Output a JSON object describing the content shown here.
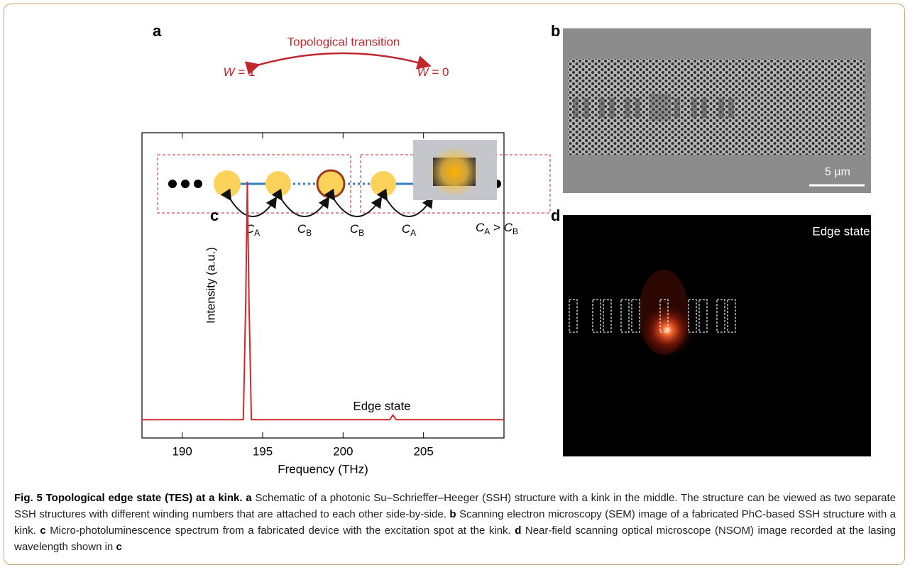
{
  "panel_a": {
    "label": "a",
    "title": "Topological transition",
    "left_winding": {
      "symbol": "W",
      "rest": " = 1"
    },
    "right_winding": {
      "symbol": "W",
      "rest": " = 0"
    },
    "couplings": [
      {
        "symbol": "C",
        "sub": "A"
      },
      {
        "symbol": "C",
        "sub": "B"
      },
      {
        "symbol": "C",
        "sub": "B"
      },
      {
        "symbol": "C",
        "sub": "A"
      }
    ],
    "condition": {
      "left": {
        "symbol": "C",
        "sub": "A"
      },
      "op": " > ",
      "right": {
        "symbol": "C",
        "sub": "B"
      }
    }
  },
  "panel_b": {
    "label": "b",
    "scale_bar": "5 µm"
  },
  "panel_c": {
    "label": "c"
  },
  "panel_d": {
    "label": "d",
    "annotation": "Edge state"
  },
  "chart_data": {
    "type": "line",
    "x_label": "Frequency (THz)",
    "y_label": "Intensity (a.u.)",
    "annotation": "Edge state",
    "x": [
      187.5,
      193.8,
      193.95,
      194.05,
      194.15,
      194.3,
      202.9,
      203.1,
      203.3,
      210
    ],
    "values": [
      0.06,
      0.06,
      0.45,
      0.84,
      0.45,
      0.06,
      0.06,
      0.075,
      0.06,
      0.06
    ],
    "color": "#d7262b",
    "xlim": [
      187.5,
      210
    ],
    "xticks": [
      190,
      195,
      200,
      205
    ],
    "ylim": [
      0,
      1
    ]
  },
  "caption": {
    "title": "Fig. 5 Topological edge state (TES) at a kink.",
    "parts": [
      {
        "label": "a",
        "text": "Schematic of a photonic Su–Schrieffer–Heeger (SSH) structure with a kink in the middle. The structure can be viewed as two separate SSH structures with different winding numbers that are attached to each other side-by-side."
      },
      {
        "label": "b",
        "text": "Scanning electron microscopy (SEM) image of a fabricated PhC-based SSH structure with a kink."
      },
      {
        "label": "c",
        "text": "Micro-photoluminescence spectrum from a fabricated device with the excitation spot at the kink."
      },
      {
        "label": "d",
        "text": "Near-field scanning optical microscope (NSOM) image recorded at the lasing wavelength shown in",
        "ref": "c"
      }
    ]
  }
}
